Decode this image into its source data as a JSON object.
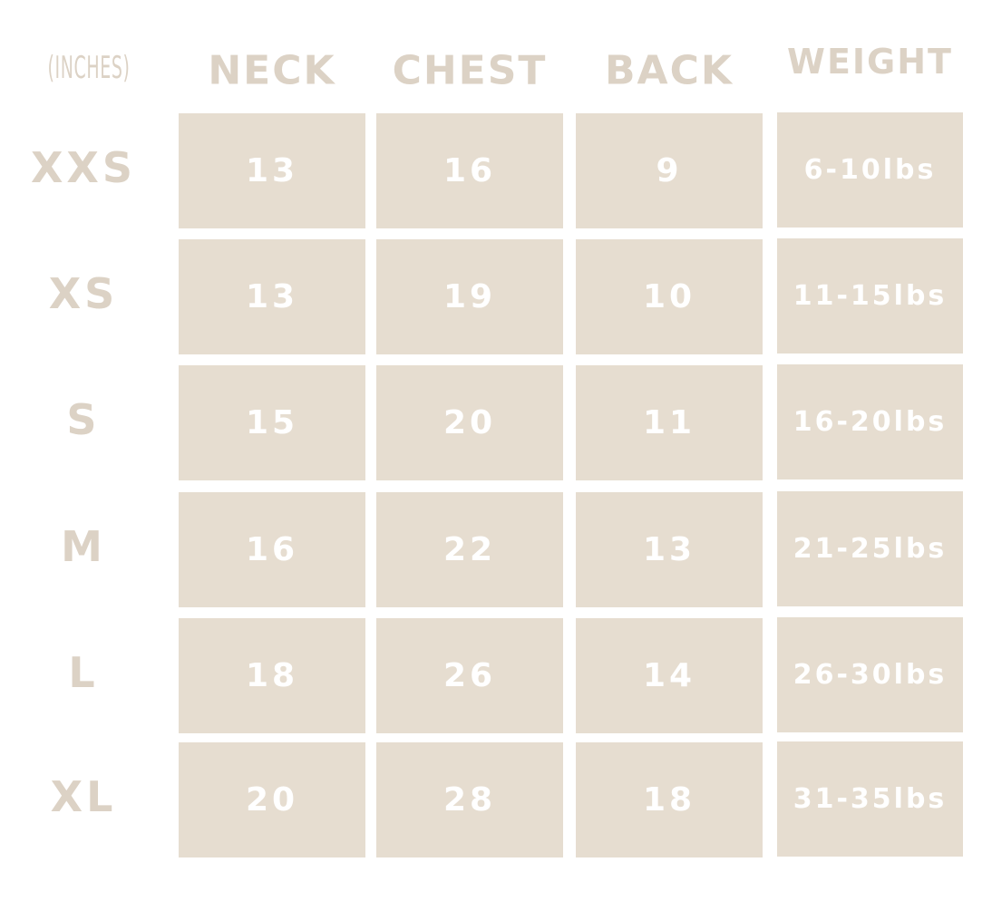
{
  "table": {
    "corner": "(INCHES)",
    "columns": [
      "NECK",
      "CHEST",
      "BACK",
      "WEIGHT"
    ],
    "rows": [
      [
        "XXS",
        "13",
        "16",
        "9",
        "6-10lbs"
      ],
      [
        "XS",
        "13",
        "19",
        "10",
        "11-15lbs"
      ],
      [
        "S",
        "15",
        "20",
        "11",
        "16-20lbs"
      ],
      [
        "M",
        "16",
        "22",
        "13",
        "21-25lbs"
      ],
      [
        "L",
        "18",
        "26",
        "14",
        "26-30lbs"
      ],
      [
        "XL",
        "20",
        "28",
        "18",
        "31-35lbs"
      ]
    ]
  }
}
